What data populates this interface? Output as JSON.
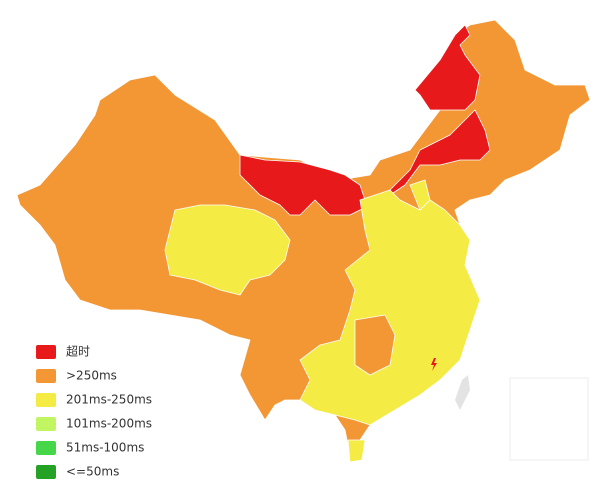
{
  "legend": {
    "items": [
      {
        "label": "超时",
        "color": "#e8191a"
      },
      {
        "label": ">250ms",
        "color": "#f39634"
      },
      {
        "label": "201ms-250ms",
        "color": "#f5eb45"
      },
      {
        "label": "101ms-200ms",
        "color": "#c1f562"
      },
      {
        "label": "51ms-100ms",
        "color": "#46d649"
      },
      {
        "label": "<=50ms",
        "color": "#25a225"
      }
    ]
  }
}
